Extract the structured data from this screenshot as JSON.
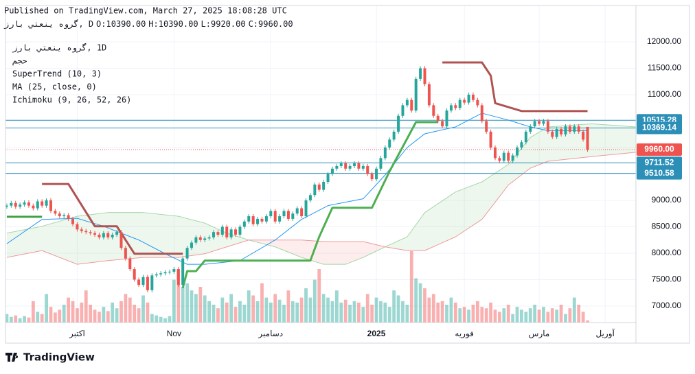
{
  "chart_data": {
    "type": "candlestick",
    "published": "Published on TradingView.com, March 27, 2025 18:08:28 UTC",
    "header": {
      "symbol": "زراب  يتعنی هورگ, D",
      "items": [
        {
          "key": "O:",
          "value": 10390,
          "label": "10390.00"
        },
        {
          "key": "H:",
          "value": 10390,
          "label": "10390.00"
        },
        {
          "key": "L:",
          "value": 9920,
          "label": "9920.00"
        },
        {
          "key": "C:",
          "value": 9960,
          "label": "9960.00"
        }
      ]
    },
    "legend": [
      "زراب يتعنی هورگ, 1D",
      "مجح",
      "SuperTrend (10, 3)",
      "MA (25, close, 0)",
      "Ichimoku (9, 26, 52, 26)"
    ],
    "logo": "TradingView",
    "up_color": "#26a69a",
    "down_color": "#ef5350",
    "xlim": [
      -0.3,
      143
    ],
    "xticks": [
      {
        "value": 16,
        "label": "اکتبر"
      },
      {
        "value": 38,
        "label": "Nov"
      },
      {
        "value": 60,
        "label": "دسامبر"
      },
      {
        "value": 84,
        "label": "2025"
      },
      {
        "value": 104,
        "label": "فوریه"
      },
      {
        "value": 121,
        "label": "مارس"
      },
      {
        "value": 136,
        "label": "آوریل"
      }
    ],
    "ylim": [
      6688,
      12688
    ],
    "yticks": [
      {
        "value": 7000,
        "label": "7000.00"
      },
      {
        "value": 7500,
        "label": "7500.00"
      },
      {
        "value": 8000,
        "label": "8000.00"
      },
      {
        "value": 8500,
        "label": "8500.00"
      },
      {
        "value": 9000,
        "label": "9000.00"
      },
      {
        "value": 9500,
        "label": "9500.00"
      },
      {
        "value": 10000,
        "label": "10000.00"
      },
      {
        "value": 10500,
        "label": "10500.00"
      },
      {
        "value": 11000,
        "label": "11000.00"
      },
      {
        "value": 11500,
        "label": "11500.00"
      },
      {
        "value": 12000,
        "label": "12000.00"
      }
    ],
    "grid": true,
    "levels": [
      {
        "value": 10515.28,
        "color": "#2b8fb8"
      },
      {
        "value": 10369.14,
        "color": "#2b8fb8"
      },
      {
        "value": 9960,
        "label": "9960.00",
        "color": "#ef5350",
        "dotted": true
      },
      {
        "value": 9711.52,
        "color": "#2b8fb8"
      },
      {
        "value": 9510.58,
        "color": "#2b8fb8"
      }
    ],
    "candles": [
      [
        8880,
        8940,
        8840,
        8900
      ],
      [
        8900,
        8990,
        8860,
        8950
      ],
      [
        8950,
        8990,
        8840,
        8880
      ],
      [
        8880,
        8960,
        8840,
        8920
      ],
      [
        8920,
        9000,
        8880,
        8960
      ],
      [
        8960,
        9000,
        8860,
        8900
      ],
      [
        8900,
        8940,
        8810,
        8850
      ],
      [
        8850,
        9020,
        8810,
        8980
      ],
      [
        8980,
        9020,
        8860,
        8900
      ],
      [
        8900,
        9040,
        8860,
        9000
      ],
      [
        9000,
        9040,
        8760,
        8800
      ],
      [
        8800,
        8840,
        8710,
        8750
      ],
      [
        8750,
        8790,
        8660,
        8700
      ],
      [
        8700,
        8760,
        8660,
        8720
      ],
      [
        8720,
        8760,
        8610,
        8650
      ],
      [
        8650,
        8690,
        8510,
        8550
      ],
      [
        8550,
        8590,
        8410,
        8450
      ],
      [
        8450,
        8490,
        8380,
        8420
      ],
      [
        8420,
        8460,
        8360,
        8400
      ],
      [
        8400,
        8440,
        8340,
        8380
      ],
      [
        8380,
        8420,
        8310,
        8350
      ],
      [
        8350,
        8390,
        8260,
        8300
      ],
      [
        8300,
        8420,
        8260,
        8380
      ],
      [
        8380,
        8420,
        8260,
        8300
      ],
      [
        8300,
        8390,
        8260,
        8350
      ],
      [
        8350,
        8440,
        8310,
        8400
      ],
      [
        8400,
        8440,
        8060,
        8100
      ],
      [
        8100,
        8140,
        7860,
        7900
      ],
      [
        7900,
        7940,
        7660,
        7700
      ],
      [
        7700,
        7740,
        7460,
        7500
      ],
      [
        7500,
        7540,
        7360,
        7400
      ],
      [
        7400,
        7590,
        7360,
        7550
      ],
      [
        7550,
        7590,
        7260,
        7300
      ],
      [
        7300,
        7620,
        7260,
        7580
      ],
      [
        7580,
        7640,
        7540,
        7600
      ],
      [
        7600,
        7660,
        7560,
        7620
      ],
      [
        7620,
        7680,
        7580,
        7640
      ],
      [
        7640,
        7690,
        7600,
        7650
      ],
      [
        7650,
        7740,
        7610,
        7700
      ],
      [
        7700,
        7740,
        7360,
        7400
      ],
      [
        7400,
        7940,
        7360,
        7900
      ],
      [
        7900,
        8140,
        7860,
        8100
      ],
      [
        8100,
        8240,
        8060,
        8200
      ],
      [
        8200,
        8340,
        8160,
        8300
      ],
      [
        8300,
        8340,
        8210,
        8250
      ],
      [
        8250,
        8320,
        8210,
        8280
      ],
      [
        8280,
        8340,
        8240,
        8300
      ],
      [
        8300,
        8440,
        8260,
        8400
      ],
      [
        8400,
        8440,
        8310,
        8350
      ],
      [
        8350,
        8540,
        8310,
        8500
      ],
      [
        8500,
        8540,
        8260,
        8300
      ],
      [
        8300,
        8490,
        8260,
        8450
      ],
      [
        8450,
        8490,
        8310,
        8350
      ],
      [
        8350,
        8540,
        8310,
        8500
      ],
      [
        8500,
        8640,
        8460,
        8600
      ],
      [
        8600,
        8740,
        8560,
        8700
      ],
      [
        8700,
        8740,
        8510,
        8550
      ],
      [
        8550,
        8690,
        8510,
        8650
      ],
      [
        8650,
        8690,
        8560,
        8600
      ],
      [
        8600,
        8740,
        8560,
        8700
      ],
      [
        8700,
        8840,
        8660,
        8800
      ],
      [
        8800,
        8840,
        8560,
        8600
      ],
      [
        8600,
        8740,
        8560,
        8700
      ],
      [
        8700,
        8840,
        8660,
        8800
      ],
      [
        8800,
        8840,
        8610,
        8650
      ],
      [
        8650,
        8790,
        8610,
        8750
      ],
      [
        8750,
        8890,
        8710,
        8850
      ],
      [
        8850,
        8890,
        8660,
        8700
      ],
      [
        8700,
        9040,
        8660,
        9000
      ],
      [
        9000,
        9140,
        8960,
        9100
      ],
      [
        9100,
        9340,
        9060,
        9300
      ],
      [
        9300,
        9340,
        9160,
        9200
      ],
      [
        9200,
        9390,
        9160,
        9350
      ],
      [
        9350,
        9540,
        9310,
        9500
      ],
      [
        9500,
        9640,
        9460,
        9600
      ],
      [
        9600,
        9690,
        9560,
        9650
      ],
      [
        9650,
        9740,
        9610,
        9700
      ],
      [
        9700,
        9740,
        9560,
        9600
      ],
      [
        9600,
        9690,
        9560,
        9650
      ],
      [
        9650,
        9740,
        9610,
        9700
      ],
      [
        9700,
        9740,
        9560,
        9600
      ],
      [
        9600,
        9690,
        9560,
        9650
      ],
      [
        9650,
        9690,
        9460,
        9500
      ],
      [
        9500,
        9540,
        9360,
        9400
      ],
      [
        9400,
        9640,
        9360,
        9600
      ],
      [
        9600,
        9840,
        9560,
        9800
      ],
      [
        9800,
        10040,
        9760,
        10000
      ],
      [
        10000,
        10190,
        9960,
        10150
      ],
      [
        10150,
        10340,
        10110,
        10300
      ],
      [
        10300,
        10640,
        10260,
        10600
      ],
      [
        10600,
        10840,
        10560,
        10800
      ],
      [
        10800,
        10940,
        10760,
        10900
      ],
      [
        10900,
        10940,
        10660,
        10700
      ],
      [
        10700,
        11340,
        10660,
        11300
      ],
      [
        11300,
        11540,
        11260,
        11500
      ],
      [
        11500,
        11540,
        11160,
        11200
      ],
      [
        11200,
        11240,
        10760,
        10800
      ],
      [
        10800,
        10840,
        10560,
        10600
      ],
      [
        10600,
        10640,
        10460,
        10500
      ],
      [
        10500,
        10540,
        10360,
        10400
      ],
      [
        10400,
        10740,
        10360,
        10700
      ],
      [
        10700,
        10840,
        10660,
        10800
      ],
      [
        10800,
        10840,
        10710,
        10750
      ],
      [
        10750,
        10940,
        10710,
        10900
      ],
      [
        10900,
        10940,
        10810,
        10850
      ],
      [
        10850,
        11040,
        10810,
        11000
      ],
      [
        11000,
        11040,
        10860,
        10900
      ],
      [
        10900,
        10940,
        10760,
        10800
      ],
      [
        10800,
        10840,
        10460,
        10500
      ],
      [
        10500,
        10540,
        10260,
        10300
      ],
      [
        10300,
        10340,
        9960,
        10000
      ],
      [
        10000,
        10040,
        9760,
        9800
      ],
      [
        9800,
        9840,
        9710,
        9750
      ],
      [
        9750,
        9940,
        9710,
        9900
      ],
      [
        9900,
        9940,
        9710,
        9750
      ],
      [
        9750,
        9890,
        9710,
        9850
      ],
      [
        9850,
        10040,
        9810,
        10000
      ],
      [
        10000,
        10140,
        9960,
        10100
      ],
      [
        10100,
        10340,
        10060,
        10300
      ],
      [
        10300,
        10440,
        10260,
        10400
      ],
      [
        10400,
        10540,
        10360,
        10500
      ],
      [
        10500,
        10540,
        10410,
        10450
      ],
      [
        10450,
        10540,
        10410,
        10500
      ],
      [
        10500,
        10540,
        10260,
        10300
      ],
      [
        10300,
        10340,
        10160,
        10200
      ],
      [
        10200,
        10390,
        10160,
        10350
      ],
      [
        10350,
        10390,
        10210,
        10250
      ],
      [
        10250,
        10440,
        10210,
        10400
      ],
      [
        10400,
        10440,
        10260,
        10300
      ],
      [
        10300,
        10440,
        10260,
        10400
      ],
      [
        10400,
        10440,
        10260,
        10300
      ],
      [
        10300,
        10340,
        10110,
        10150
      ],
      [
        10390,
        10390,
        9920,
        9960
      ]
    ],
    "volume": [
      12,
      8,
      10,
      6,
      9,
      7,
      30,
      15,
      12,
      40,
      22,
      14,
      18,
      25,
      35,
      30,
      20,
      28,
      45,
      25,
      18,
      15,
      22,
      16,
      28,
      20,
      30,
      40,
      35,
      25,
      20,
      38,
      28,
      12,
      10,
      8,
      6,
      9,
      60,
      75,
      50,
      55,
      45,
      40,
      50,
      38,
      30,
      25,
      20,
      35,
      28,
      40,
      22,
      30,
      25,
      45,
      38,
      30,
      55,
      35,
      28,
      40,
      32,
      25,
      45,
      30,
      28,
      35,
      48,
      35,
      60,
      75,
      40,
      35,
      30,
      45,
      28,
      32,
      25,
      30,
      28,
      22,
      40,
      25,
      35,
      30,
      28,
      22,
      45,
      38,
      30,
      25,
      100,
      62,
      55,
      48,
      35,
      40,
      28,
      30,
      25,
      35,
      28,
      20,
      22,
      18,
      25,
      30,
      22,
      20,
      28,
      18,
      15,
      20,
      25,
      12,
      22,
      18,
      15,
      20,
      25,
      18,
      22,
      15,
      20,
      18,
      25,
      12,
      20,
      35,
      25,
      15,
      3
    ],
    "ma": {
      "color": "#2196f3",
      "x": [
        0,
        8,
        16,
        22,
        30,
        36,
        41,
        45,
        53,
        61,
        67,
        73,
        81,
        86,
        91,
        95,
        102,
        108,
        114,
        119,
        123,
        132
      ],
      "values": [
        8180,
        8640,
        8660,
        8510,
        8250,
        7990,
        7790,
        7790,
        7860,
        8250,
        8640,
        8900,
        9030,
        9480,
        10000,
        10260,
        10390,
        10650,
        10520,
        10390,
        10320,
        10320
      ]
    },
    "supertrend": [
      {
        "color": "#43a047",
        "x": [
          0,
          8
        ],
        "values": [
          8690,
          8690
        ]
      },
      {
        "color": "#b05252",
        "x": [
          8,
          14,
          20,
          25,
          29,
          40
        ],
        "values": [
          9310,
          9310,
          8510,
          8510,
          7990,
          7990
        ]
      },
      {
        "color": "#4caf50",
        "x": [
          40,
          41,
          43,
          45,
          69,
          71,
          74,
          83,
          87,
          93,
          98
        ],
        "values": [
          7340,
          7660,
          7660,
          7860,
          7860,
          8310,
          8860,
          8860,
          9550,
          10480,
          10480
        ]
      },
      {
        "color": "#b05252",
        "x": [
          99,
          108,
          110,
          111,
          117,
          132
        ],
        "values": [
          11610,
          11610,
          11360,
          10840,
          10690,
          10690
        ]
      }
    ],
    "ichimoku": {
      "up_color": "#4caf50",
      "down_color": "#ef5350",
      "x": [
        0,
        8,
        16,
        23,
        31,
        39,
        45,
        50,
        55,
        61,
        67,
        72,
        77,
        81,
        86,
        91,
        95,
        102,
        108,
        114,
        119,
        123,
        133,
        143
      ],
      "span_a": [
        8380,
        8510,
        8700,
        8770,
        8770,
        8700,
        8570,
        8380,
        8250,
        8120,
        7920,
        7790,
        7790,
        7920,
        8120,
        8310,
        8770,
        9160,
        9350,
        9680,
        10190,
        10390,
        10450,
        10390
      ],
      "span_b": [
        7920,
        8050,
        7790,
        7860,
        7920,
        7920,
        7990,
        8120,
        8250,
        8250,
        8250,
        8220,
        8220,
        8220,
        8120,
        8050,
        8050,
        8310,
        8640,
        9290,
        9610,
        9740,
        9830,
        9910
      ]
    }
  }
}
